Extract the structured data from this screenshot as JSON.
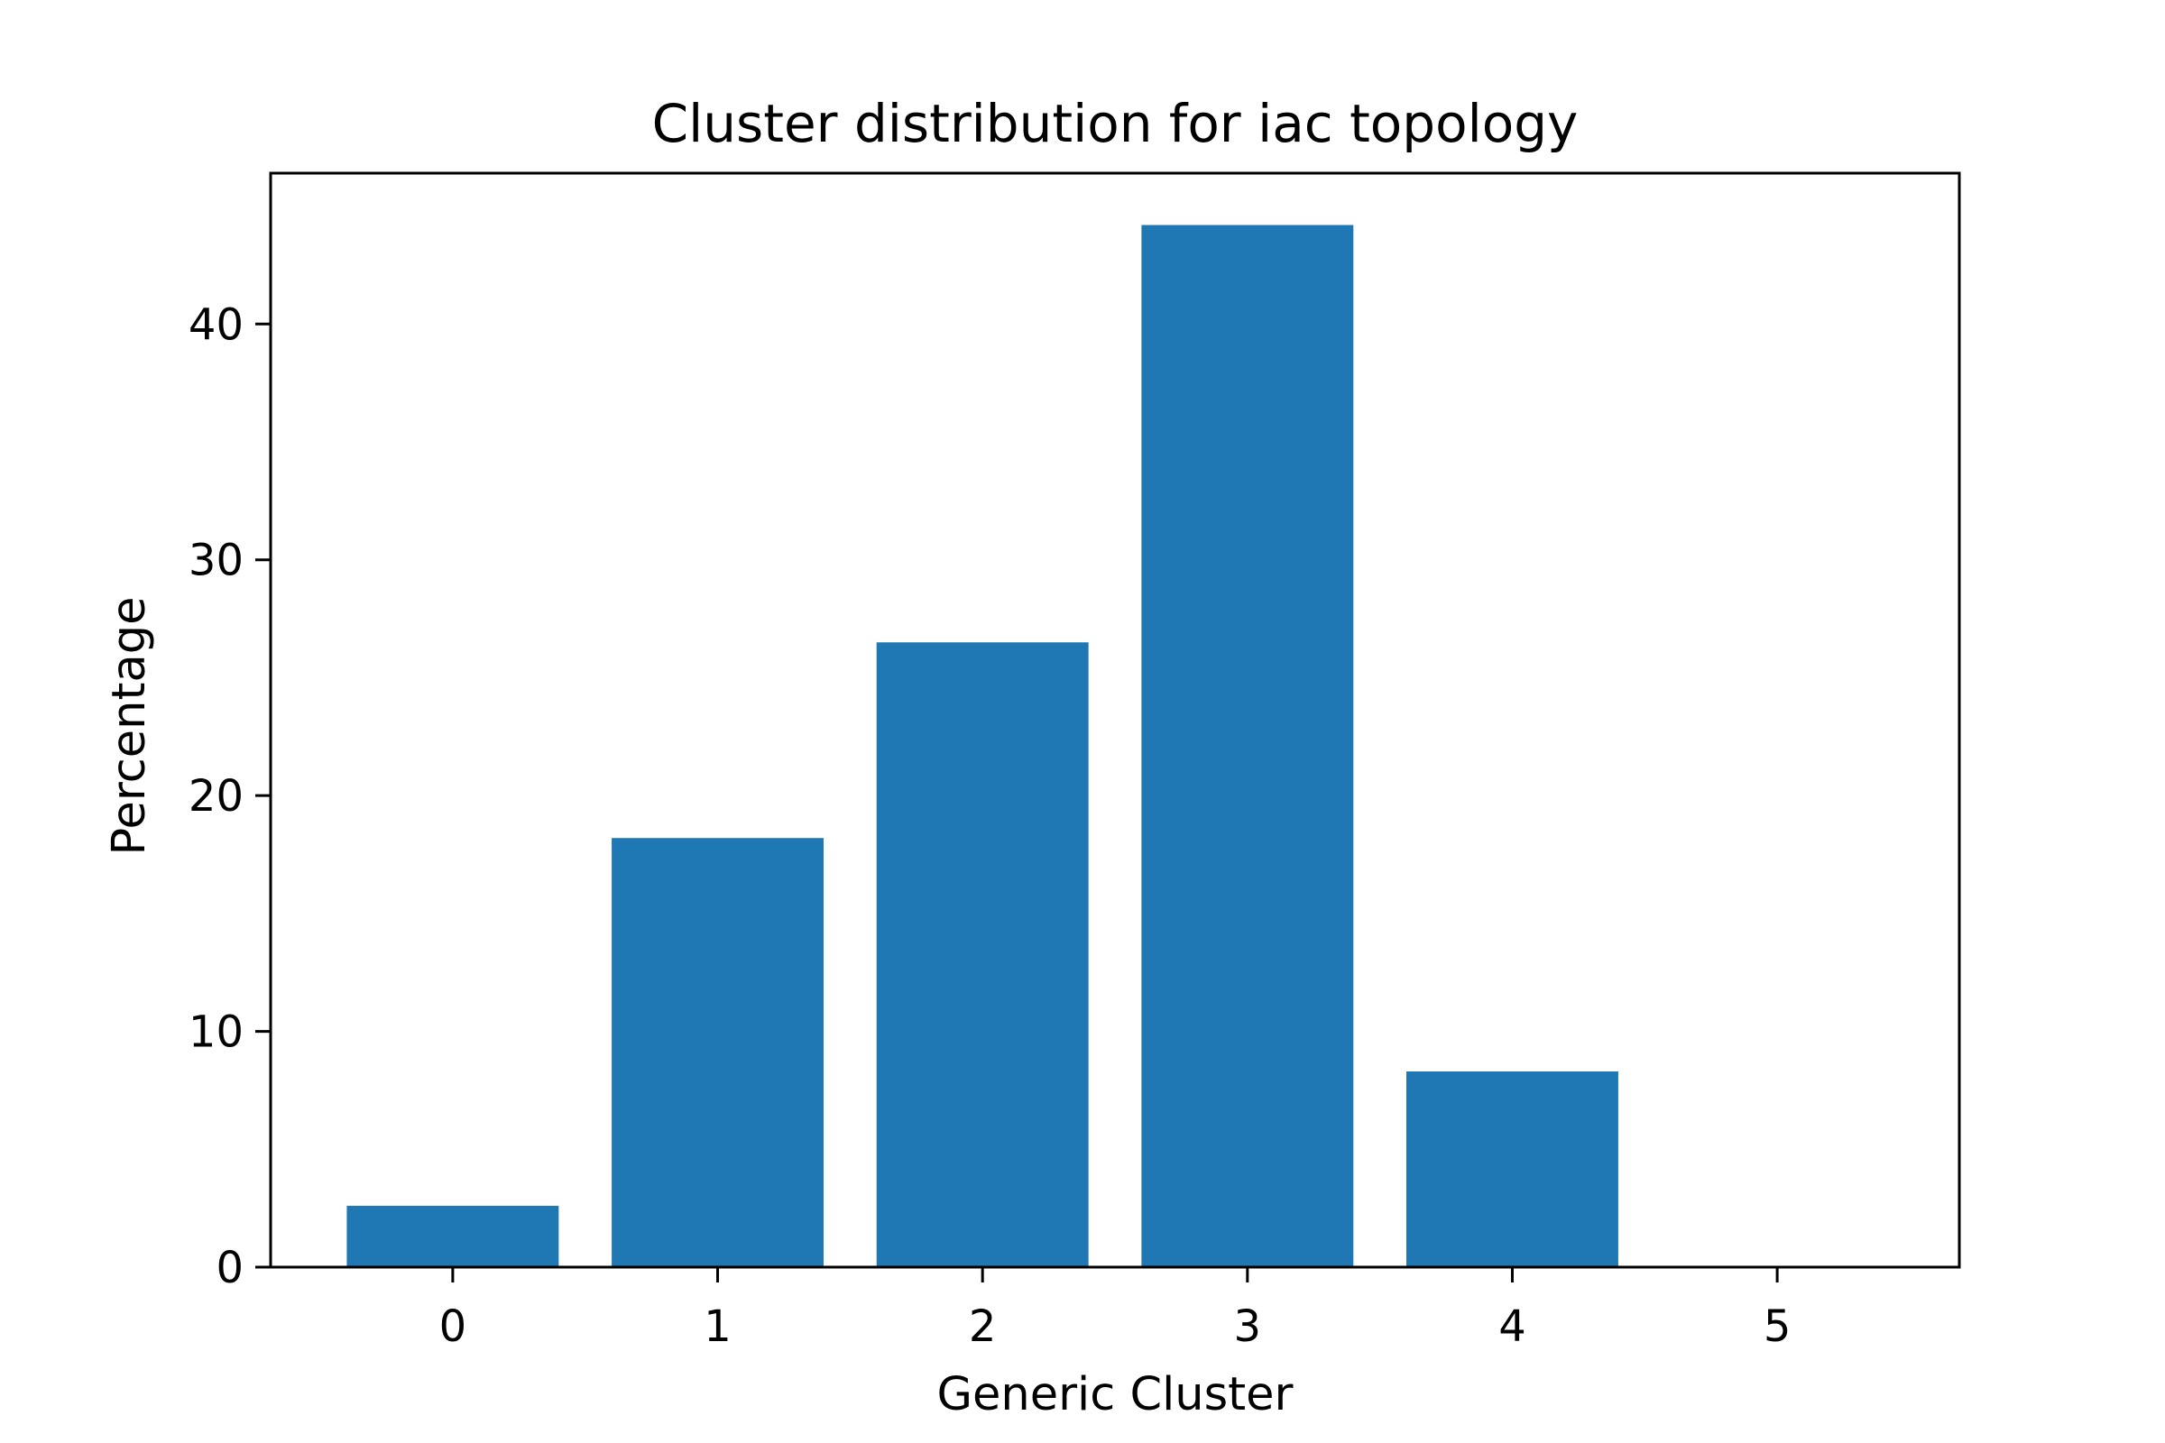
{
  "chart_data": {
    "type": "bar",
    "title": "Cluster distribution for iac topology",
    "xlabel": "Generic Cluster",
    "ylabel": "Percentage",
    "categories": [
      "0",
      "1",
      "2",
      "3",
      "4",
      "5"
    ],
    "values": [
      2.6,
      18.2,
      26.5,
      44.2,
      8.3,
      0.0
    ],
    "ylim": [
      0,
      46.4
    ],
    "yticks": [
      "0",
      "10",
      "20",
      "30",
      "40"
    ],
    "grid": false,
    "bar_color": "#1f77b4"
  }
}
